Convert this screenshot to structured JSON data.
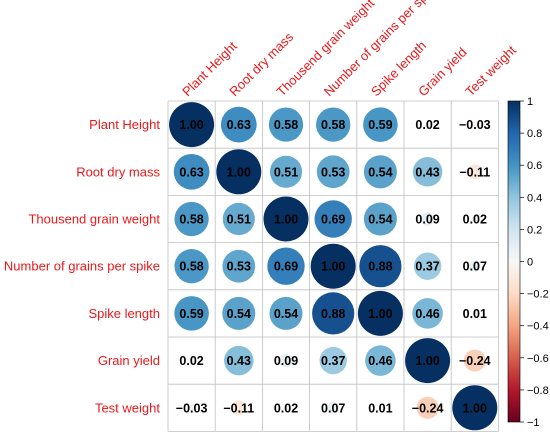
{
  "chart_data": {
    "type": "heatmap",
    "variables": [
      "Plant Height",
      "Root dry mass",
      "Thousend grain weight",
      "Number of grains per spike",
      "Spike length",
      "Grain yield",
      "Test weight"
    ],
    "matrix": [
      [
        1.0,
        0.63,
        0.58,
        0.58,
        0.59,
        0.02,
        -0.03
      ],
      [
        0.63,
        1.0,
        0.51,
        0.53,
        0.54,
        0.43,
        -0.11
      ],
      [
        0.58,
        0.51,
        1.0,
        0.69,
        0.54,
        0.09,
        0.02
      ],
      [
        0.58,
        0.53,
        0.69,
        1.0,
        0.88,
        0.37,
        0.07
      ],
      [
        0.59,
        0.54,
        0.54,
        0.88,
        1.0,
        0.46,
        0.01
      ],
      [
        0.02,
        0.43,
        0.09,
        0.37,
        0.46,
        1.0,
        -0.24
      ],
      [
        -0.03,
        -0.11,
        0.02,
        0.07,
        0.01,
        -0.24,
        1.0
      ]
    ],
    "display_values": [
      [
        "1.00",
        "0.63",
        "0.58",
        "0.58",
        "0.59",
        "0.02",
        "−0.03"
      ],
      [
        "0.63",
        "1.00",
        "0.51",
        "0.53",
        "0.54",
        "0.43",
        "−0.11"
      ],
      [
        "0.58",
        "0.51",
        "1.00",
        "0.69",
        "0.54",
        "0.09",
        "0.02"
      ],
      [
        "0.58",
        "0.53",
        "0.69",
        "1.00",
        "0.88",
        "0.37",
        "0.07"
      ],
      [
        "0.59",
        "0.54",
        "0.54",
        "0.88",
        "1.00",
        "0.46",
        "0.01"
      ],
      [
        "0.02",
        "0.43",
        "0.09",
        "0.37",
        "0.46",
        "1.00",
        "−0.24"
      ],
      [
        "−0.03",
        "−0.11",
        "0.02",
        "0.07",
        "0.01",
        "−0.24",
        "1.00"
      ]
    ],
    "colorbar": {
      "range": [
        -1,
        1
      ],
      "ticks": [
        1,
        0.8,
        0.6,
        0.4,
        0.2,
        0,
        -0.2,
        -0.4,
        -0.6,
        -0.8,
        -1
      ],
      "tick_labels": [
        "1",
        "0.8",
        "0.6",
        "0.4",
        "0.2",
        "0",
        "−0.2",
        "−0.4",
        "−0.6",
        "−0.8",
        "−1"
      ],
      "placement": "right"
    },
    "colors": {
      "label_color": "#e8191b",
      "strong_positive": "#053061",
      "mid_positive": "#2166ac",
      "light_positive": "#4393c3",
      "pale_positive": "#92c5de",
      "neutral": "#f7f7f7",
      "pale_negative": "#f4a582",
      "strong_negative": "#67001f",
      "grid": "#bfbfbf"
    },
    "grid": true,
    "shape": "circle"
  }
}
